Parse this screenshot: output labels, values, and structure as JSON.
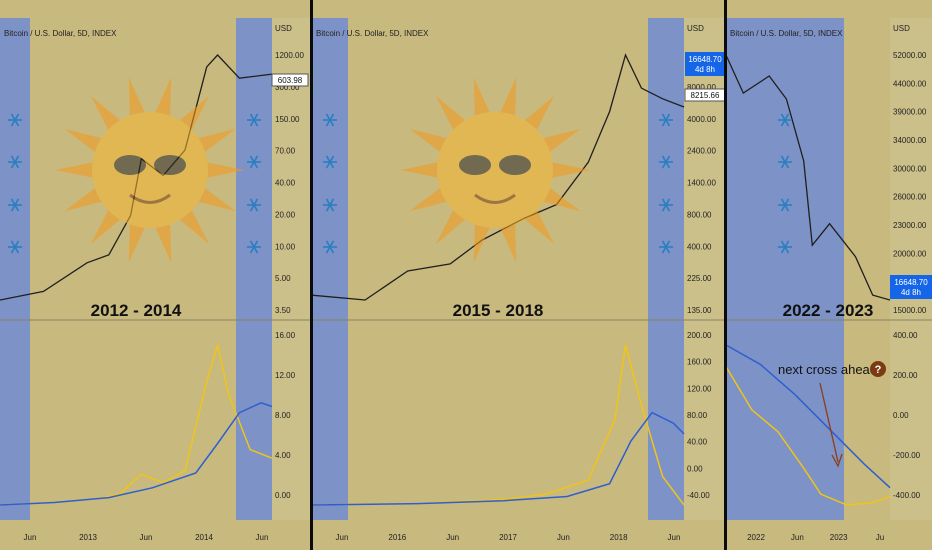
{
  "colors": {
    "summer": "#c8b97e",
    "winter": "#7d92c6",
    "price": "#1f1f1f",
    "fast_line": "#f0c419",
    "slow_line": "#2e5fd0",
    "divider": "#0b0b0b",
    "price_tag": "#1565e8"
  },
  "icons": [
    "snowflake-icon",
    "sun-with-sunglasses-icon",
    "question-circle-icon"
  ],
  "chart_data": [
    {
      "type": "line",
      "panel": "2012 - 2014",
      "title": "Bitcoin / U.S. Dollar, 5D, INDEX",
      "era_label": "2012 - 2014",
      "currency": "USD",
      "price_tag": "603.98",
      "x": [
        "2012-01",
        "2012-07",
        "2013-01",
        "2013-07",
        "2014-01",
        "2014-07"
      ],
      "price_axis_ticks": [
        "1200.00",
        "300.00",
        "150.00",
        "70.00",
        "40.00",
        "20.00",
        "10.00",
        "5.00",
        "3.50"
      ],
      "time_axis_ticks": [
        "Jun",
        "2013",
        "Jun",
        "2014",
        "Jun"
      ],
      "osc_axis_ticks": [
        "16.00",
        "12.00",
        "8.00",
        "4.00",
        "0.00"
      ],
      "price_series": {
        "name": "",
        "x": [
          2012.0,
          2012.4,
          2012.8,
          2013.0,
          2013.2,
          2013.3,
          2013.5,
          2013.7,
          2013.9,
          2014.0,
          2014.2,
          2014.5
        ],
        "y": [
          5,
          6,
          11,
          13,
          30,
          100,
          70,
          120,
          700,
          900,
          550,
          600
        ]
      },
      "oscillator_fast": {
        "name": "",
        "x": [
          2012.0,
          2012.5,
          2012.9,
          2013.1,
          2013.3,
          2013.5,
          2013.7,
          2013.9,
          2014.0,
          2014.1,
          2014.3,
          2014.5
        ],
        "y": [
          0,
          0.2,
          0.5,
          0.9,
          2.5,
          1.8,
          2.8,
          10,
          13,
          9,
          4.5,
          3.8
        ]
      },
      "oscillator_slow": {
        "name": "",
        "x": [
          2012.0,
          2012.5,
          2013.0,
          2013.4,
          2013.8,
          2014.0,
          2014.2,
          2014.4,
          2014.5
        ],
        "y": [
          0,
          0.2,
          0.6,
          1.4,
          2.6,
          5,
          7.5,
          8.3,
          8
        ]
      }
    },
    {
      "type": "line",
      "panel": "2015 - 2018",
      "title": "Bitcoin / U.S. Dollar, 5D, INDEX",
      "era_label": "2015 - 2018",
      "currency": "USD",
      "price_tag_main": "16648.70",
      "price_tag_sub": "4d 8h",
      "price_tag_2": "8215.66",
      "price_axis_ticks": [
        "16000.00",
        "8000.00",
        "4000.00",
        "2400.00",
        "1400.00",
        "800.00",
        "400.00",
        "225.00",
        "135.00"
      ],
      "time_axis_ticks": [
        "Jun",
        "2016",
        "Jun",
        "2017",
        "Jun",
        "2018",
        "Jun"
      ],
      "osc_axis_ticks": [
        "200.00",
        "160.00",
        "120.00",
        "80.00",
        "40.00",
        "0.00",
        "-40.00"
      ],
      "price_series": {
        "name": "",
        "x": [
          2015.0,
          2015.5,
          2015.9,
          2016.3,
          2016.6,
          2017.0,
          2017.3,
          2017.6,
          2017.8,
          2017.95,
          2018.1,
          2018.3,
          2018.5
        ],
        "y": [
          250,
          230,
          380,
          430,
          650,
          950,
          1200,
          2500,
          6000,
          16000,
          9000,
          7500,
          6500
        ]
      },
      "oscillator_fast": {
        "name": "",
        "x": [
          2015.0,
          2016.0,
          2016.8,
          2017.2,
          2017.6,
          2017.85,
          2017.95,
          2018.1,
          2018.3,
          2018.5
        ],
        "y": [
          0,
          2,
          8,
          15,
          35,
          120,
          225,
          140,
          40,
          0
        ]
      },
      "oscillator_slow": {
        "name": "",
        "x": [
          2015.0,
          2016.0,
          2016.8,
          2017.4,
          2017.8,
          2018.0,
          2018.2,
          2018.4,
          2018.5
        ],
        "y": [
          0,
          2,
          6,
          12,
          30,
          90,
          130,
          115,
          100
        ]
      }
    },
    {
      "type": "line",
      "panel": "2022 - 2023",
      "title": "Bitcoin / U.S. Dollar, 5D, INDEX",
      "era_label": "2022 - 2023",
      "currency": "USD",
      "price_tag_main": "16648.70",
      "price_tag_sub": "4d 8h",
      "price_axis_ticks": [
        "52000.00",
        "44000.00",
        "39000.00",
        "34000.00",
        "30000.00",
        "26000.00",
        "23000.00",
        "20000.00",
        "17000.00",
        "15000.00"
      ],
      "time_axis_ticks": [
        "2022",
        "Jun",
        "2023",
        "Ju"
      ],
      "osc_axis_ticks": [
        "400.00",
        "200.00",
        "0.00",
        "-200.00",
        "-400.00"
      ],
      "annotation": "next cross ahead",
      "price_series": {
        "name": "",
        "x": [
          2022.0,
          2022.1,
          2022.25,
          2022.35,
          2022.45,
          2022.5,
          2022.6,
          2022.75,
          2022.85,
          2022.95
        ],
        "y": [
          47000,
          40000,
          43000,
          39000,
          30000,
          21000,
          23000,
          20000,
          17000,
          16648
        ]
      },
      "oscillator_fast": {
        "name": "",
        "x": [
          2022.0,
          2022.15,
          2022.3,
          2022.45,
          2022.55,
          2022.7,
          2022.85,
          2022.95
        ],
        "y": [
          250,
          50,
          -50,
          -220,
          -340,
          -390,
          -380,
          -350
        ]
      },
      "oscillator_slow": {
        "name": "",
        "x": [
          2022.0,
          2022.2,
          2022.4,
          2022.6,
          2022.8,
          2022.95
        ],
        "y": [
          350,
          260,
          120,
          -40,
          -200,
          -310
        ]
      }
    }
  ]
}
